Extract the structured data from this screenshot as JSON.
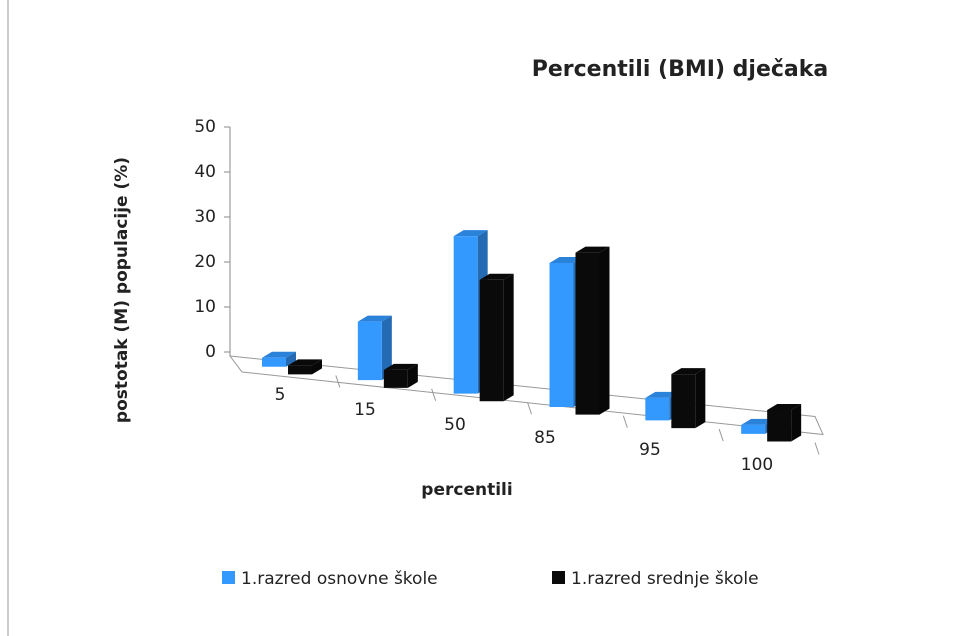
{
  "chart_data": {
    "type": "bar3d",
    "title": "Percentili (BMI) dječaka",
    "x_label": "percentili",
    "y_label": "postotak (M) populacije  (%)",
    "categories": [
      "5",
      "15",
      "50",
      "85",
      "95",
      "100"
    ],
    "series": [
      {
        "name": "1.razred osnovne škole",
        "color": "#3399ff",
        "values": [
          2,
          13,
          35,
          32,
          5,
          2
        ]
      },
      {
        "name": "1.razred srednje škole",
        "color": "#0a0a0a",
        "values": [
          2,
          4,
          27,
          36,
          12,
          7
        ]
      }
    ],
    "ylim": [
      0,
      50
    ],
    "yticks": [
      0,
      10,
      20,
      30,
      40,
      50
    ]
  }
}
